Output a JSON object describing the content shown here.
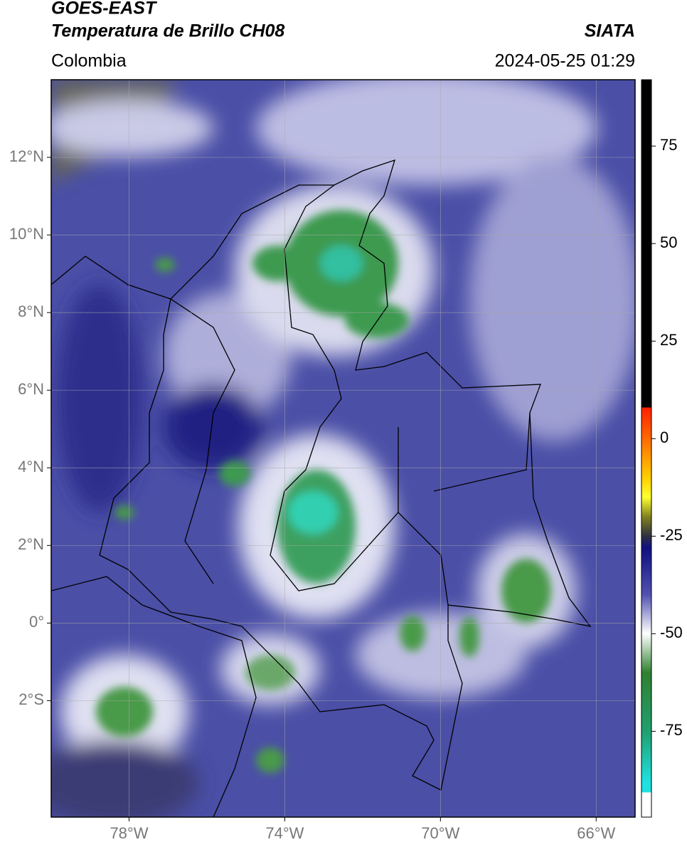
{
  "header": {
    "title": "GOES-EAST",
    "subtitle": "Temperatura de Brillo CH08",
    "brand": "SIATA",
    "region": "Colombia",
    "datetime": "2024-05-25 01:29"
  },
  "map": {
    "xlim": [
      -80,
      -65
    ],
    "ylim": [
      -5,
      14
    ],
    "grid": true,
    "xticks": [
      {
        "value": -78,
        "label": "78°W"
      },
      {
        "value": -74,
        "label": "74°W"
      },
      {
        "value": -70,
        "label": "70°W"
      },
      {
        "value": -66,
        "label": "66°W"
      }
    ],
    "yticks": [
      {
        "value": 12,
        "label": "12°N"
      },
      {
        "value": 10,
        "label": "10°N"
      },
      {
        "value": 8,
        "label": "8°N"
      },
      {
        "value": 6,
        "label": "6°N"
      },
      {
        "value": 4,
        "label": "4°N"
      },
      {
        "value": 2,
        "label": "2°N"
      },
      {
        "value": 0,
        "label": "0°"
      },
      {
        "value": -2,
        "label": "2°S"
      }
    ]
  },
  "colorbar": {
    "lim": [
      -97,
      92
    ],
    "ticks": [
      75,
      50,
      25,
      0,
      -25,
      -50,
      -75
    ]
  }
}
